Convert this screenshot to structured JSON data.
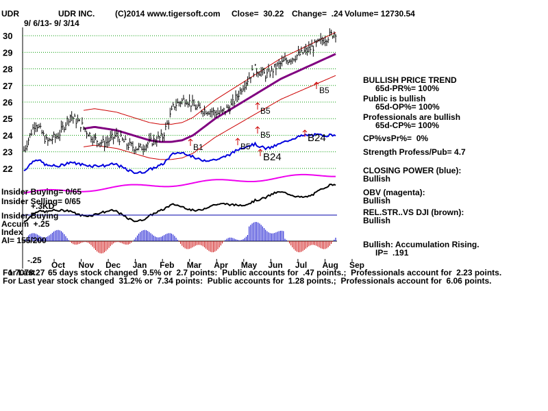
{
  "header": {
    "symbol": "UDR",
    "company": "UDR INC.",
    "copyright": "(C)2014 www.tigersoft.com",
    "close": "Close=  30.22",
    "change": "Change=  .24",
    "volume": "Volume= 12730.54",
    "daterange": "9/ 6/13- 9/ 3/14"
  },
  "right_panel": {
    "trend_title": "BULLISH PRICE TREND",
    "trend_pr": "65d-PR%= 100%",
    "public_title": "Public is bullish",
    "public_op": "65d-OP%= 100%",
    "prof_title": "Professionals are bullish",
    "prof_cp": "65d-CP%= 100%",
    "cpvspr": "CP%vsPr%=  0%",
    "strength": "Strength Profess/Pub= 4.7",
    "closing_title": "CLOSING POWER (blue):",
    "closing_val": "Bullish",
    "obv_title": "OBV (magenta):",
    "obv_val": "Bullish",
    "relstr_title": "REL.STR..VS DJI (brown):",
    "relstr_val": "Bullish",
    "accum_title": "Bullish: Accumulation Rising.",
    "ip": "IP=  .191"
  },
  "left_labels": {
    "insider_buying": "Insider Buying= 0/65",
    "insider_selling": "Insider Selling= 0/65",
    "minus_div": "+.3KD",
    "insider_buying2": "Insider Buying",
    "accum": "Accum  +.25",
    "index": "Index",
    "ai": "AI= 155/200",
    "minus25": "-.25"
  },
  "footer": {
    "line1_prefix": "For Last",
    "line1": "65 days stock changed  9.5% or  2.7 points:  Public accounts for  .47 points.;  Professionals account for  2.23 points.",
    "line1_overlap": "1.7078.27",
    "line2": "For Last year stock changed  31.2% or  7.34 points:  Public accounts for  1.28 points.;  Professionals account for  6.06 points."
  },
  "signals": [
    {
      "label": "B1"
    },
    {
      "label": "B5"
    },
    {
      "label": "B5"
    },
    {
      "label": "B5"
    },
    {
      "label": "B5"
    },
    {
      "label": "B24"
    },
    {
      "label": "B24"
    }
  ],
  "colors": {
    "price": "#000000",
    "band": "#cc0000",
    "ma": "#800080",
    "closing_power": "#0000dd",
    "obv": "#ee00ee",
    "relstr": "#000000",
    "accum_pos": "#0000cc",
    "accum_neg": "#cc0000",
    "grid": "#009900"
  },
  "chart_data": {
    "type": "line",
    "x_ticks": [
      "Oct",
      "Nov",
      "Dec",
      "Jan",
      "Feb",
      "Mar",
      "Apr",
      "May",
      "Jun",
      "Jul",
      "Aug",
      "Sep"
    ],
    "y_ticks": [
      22,
      23,
      24,
      25,
      26,
      27,
      28,
      29,
      30
    ],
    "ylim": [
      21.5,
      30.5
    ],
    "grid": true,
    "series": [
      {
        "values": [
          23.1,
          24.8,
          23.6,
          24.0,
          25.2,
          24.6,
          23.8,
          23.5,
          24.0,
          23.4,
          23.2,
          23.6,
          23.9,
          25.8,
          26.2,
          25.6,
          25.5,
          25.3,
          25.8,
          27.0,
          28.0,
          27.6,
          28.2,
          28.6,
          28.9,
          29.3,
          29.8,
          30.22
        ]
      },
      {
        "values": [
          24.4,
          24.5,
          24.4,
          24.3,
          24.1,
          23.9,
          23.7,
          23.6,
          23.6,
          23.7,
          24.0,
          24.5,
          25.0,
          25.4,
          25.8,
          26.2,
          26.6,
          27.0,
          27.4,
          27.7,
          28.0,
          28.3,
          28.6,
          28.9
        ]
      }
    ]
  }
}
